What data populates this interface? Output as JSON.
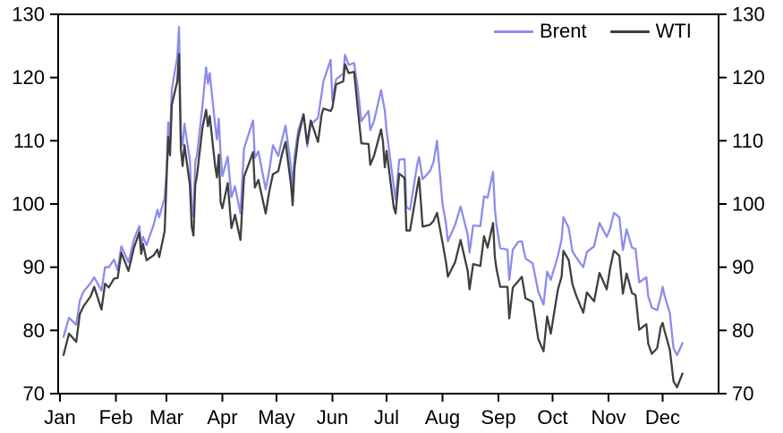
{
  "chart_data": {
    "type": "line",
    "title": "",
    "xlabel": "",
    "ylabel": "",
    "grid": false,
    "background_color": "#ffffff",
    "axis_color": "#000000",
    "text_color": "#000000",
    "legend": {
      "position": "top-right-inside",
      "entries": [
        "Brent",
        "WTI"
      ]
    },
    "x_axis": {
      "unit": "day-of-year",
      "domain": [
        0,
        366
      ],
      "tick_days": [
        1,
        32,
        60,
        91,
        121,
        152,
        182,
        213,
        244,
        274,
        305,
        335
      ],
      "tick_labels": [
        "Jan",
        "Feb",
        "Mar",
        "Apr",
        "May",
        "Jun",
        "Jul",
        "Aug",
        "Sep",
        "Oct",
        "Nov",
        "Dec"
      ]
    },
    "y_axis": {
      "lim": [
        70,
        130
      ],
      "ticks": [
        70,
        80,
        90,
        100,
        110,
        120,
        130
      ],
      "mirrored_right": true
    },
    "x_days": [
      3,
      6,
      10,
      12,
      14,
      18,
      20,
      24,
      26,
      28,
      31,
      33,
      35,
      39,
      42,
      45,
      46,
      47,
      49,
      53,
      55,
      56,
      59,
      60,
      61,
      62,
      63,
      66,
      67,
      68,
      69,
      70,
      73,
      74,
      75,
      76,
      77,
      80,
      82,
      83,
      84,
      87,
      88,
      89,
      90,
      91,
      94,
      96,
      98,
      101,
      103,
      108,
      109,
      111,
      115,
      117,
      119,
      122,
      124,
      126,
      129,
      130,
      131,
      133,
      136,
      138,
      140,
      144,
      146,
      147,
      151,
      152,
      154,
      158,
      159,
      161,
      164,
      166,
      168,
      172,
      173,
      175,
      179,
      180,
      181,
      182,
      186,
      187,
      189,
      192,
      193,
      195,
      199,
      200,
      202,
      206,
      208,
      210,
      213,
      215,
      216,
      220,
      223,
      227,
      228,
      230,
      234,
      236,
      238,
      241,
      242,
      243,
      245,
      249,
      250,
      252,
      255,
      257,
      259,
      263,
      266,
      269,
      271,
      273,
      277,
      279,
      280,
      283,
      285,
      287,
      291,
      293,
      297,
      300,
      304,
      306,
      308,
      311,
      313,
      315,
      318,
      320,
      322,
      326,
      327,
      329,
      332,
      334,
      335,
      336,
      339,
      341,
      343,
      346
    ],
    "series": [
      {
        "name": "Brent",
        "color": "#8c8cec",
        "values": [
          79.0,
          82.0,
          80.9,
          84.7,
          86.1,
          87.5,
          88.4,
          86.3,
          90.0,
          90.0,
          91.2,
          89.5,
          93.3,
          90.8,
          94.4,
          96.5,
          93.3,
          94.8,
          93.5,
          96.8,
          99.1,
          97.9,
          101.0,
          105.0,
          112.9,
          110.5,
          118.1,
          123.2,
          128.0,
          111.1,
          109.3,
          112.7,
          106.9,
          99.9,
          98.0,
          106.6,
          107.9,
          115.6,
          121.6,
          119.0,
          120.7,
          112.5,
          110.2,
          113.5,
          107.9,
          104.4,
          107.5,
          101.1,
          102.8,
          98.5,
          108.8,
          113.2,
          107.3,
          108.3,
          102.3,
          105.3,
          109.3,
          107.6,
          110.1,
          112.4,
          105.9,
          102.5,
          107.5,
          111.6,
          114.2,
          109.1,
          112.6,
          113.6,
          117.4,
          119.4,
          122.8,
          116.3,
          119.7,
          120.6,
          123.6,
          122.0,
          122.3,
          118.5,
          113.1,
          114.7,
          111.7,
          113.1,
          118.0,
          116.3,
          114.8,
          111.6,
          102.8,
          100.7,
          107.0,
          107.1,
          99.5,
          99.1,
          106.3,
          107.4,
          103.9,
          105.2,
          106.6,
          110.0,
          100.0,
          96.8,
          94.1,
          96.7,
          99.6,
          95.1,
          92.3,
          96.6,
          96.5,
          101.2,
          101.0,
          105.1,
          99.3,
          96.5,
          93.0,
          92.8,
          88.0,
          92.8,
          94.0,
          94.1,
          91.4,
          90.6,
          86.2,
          84.1,
          89.3,
          88.0,
          91.8,
          94.4,
          97.9,
          96.2,
          92.5,
          91.6,
          90.0,
          92.4,
          93.3,
          97.0,
          94.8,
          96.2,
          98.6,
          97.9,
          92.7,
          96.0,
          93.1,
          92.9,
          87.6,
          88.4,
          85.4,
          83.6,
          83.2,
          85.4,
          86.9,
          85.6,
          82.7,
          77.2,
          76.1,
          78.0
        ]
      },
      {
        "name": "WTI",
        "color": "#3f3f3f",
        "values": [
          76.1,
          79.5,
          78.2,
          82.6,
          83.8,
          85.4,
          86.9,
          83.3,
          87.4,
          86.8,
          88.2,
          88.3,
          92.3,
          89.4,
          93.1,
          95.5,
          92.1,
          93.7,
          91.1,
          91.9,
          92.8,
          91.6,
          95.7,
          103.4,
          110.6,
          107.7,
          115.7,
          119.4,
          123.7,
          108.7,
          106.0,
          109.3,
          103.0,
          96.4,
          95.0,
          103.0,
          104.7,
          112.1,
          114.9,
          112.3,
          113.9,
          106.0,
          104.2,
          107.8,
          100.3,
          99.3,
          103.3,
          96.2,
          98.3,
          94.3,
          104.3,
          108.2,
          102.6,
          103.8,
          98.5,
          102.0,
          104.7,
          105.2,
          107.8,
          109.8,
          103.1,
          99.8,
          105.7,
          110.5,
          114.2,
          109.6,
          113.2,
          109.8,
          114.1,
          115.1,
          114.7,
          115.3,
          118.9,
          119.4,
          122.1,
          120.7,
          120.9,
          115.3,
          109.6,
          109.5,
          106.2,
          107.6,
          111.8,
          109.8,
          105.8,
          108.4,
          99.5,
          98.5,
          104.8,
          104.1,
          95.8,
          95.8,
          102.6,
          104.2,
          96.4,
          96.7,
          97.3,
          98.6,
          93.9,
          90.7,
          88.5,
          90.8,
          94.3,
          89.4,
          86.5,
          90.5,
          90.2,
          94.9,
          93.1,
          97.0,
          91.6,
          89.6,
          86.9,
          86.9,
          81.9,
          86.8,
          87.8,
          88.5,
          85.1,
          84.5,
          78.7,
          76.7,
          82.2,
          79.5,
          86.5,
          88.5,
          92.6,
          91.1,
          87.3,
          85.6,
          82.8,
          86.0,
          84.6,
          89.1,
          86.5,
          90.0,
          92.6,
          91.8,
          85.8,
          89.0,
          85.9,
          85.6,
          80.1,
          81.0,
          77.9,
          76.3,
          77.2,
          80.6,
          81.2,
          80.0,
          76.9,
          72.0,
          71.0,
          73.2
        ]
      }
    ]
  }
}
